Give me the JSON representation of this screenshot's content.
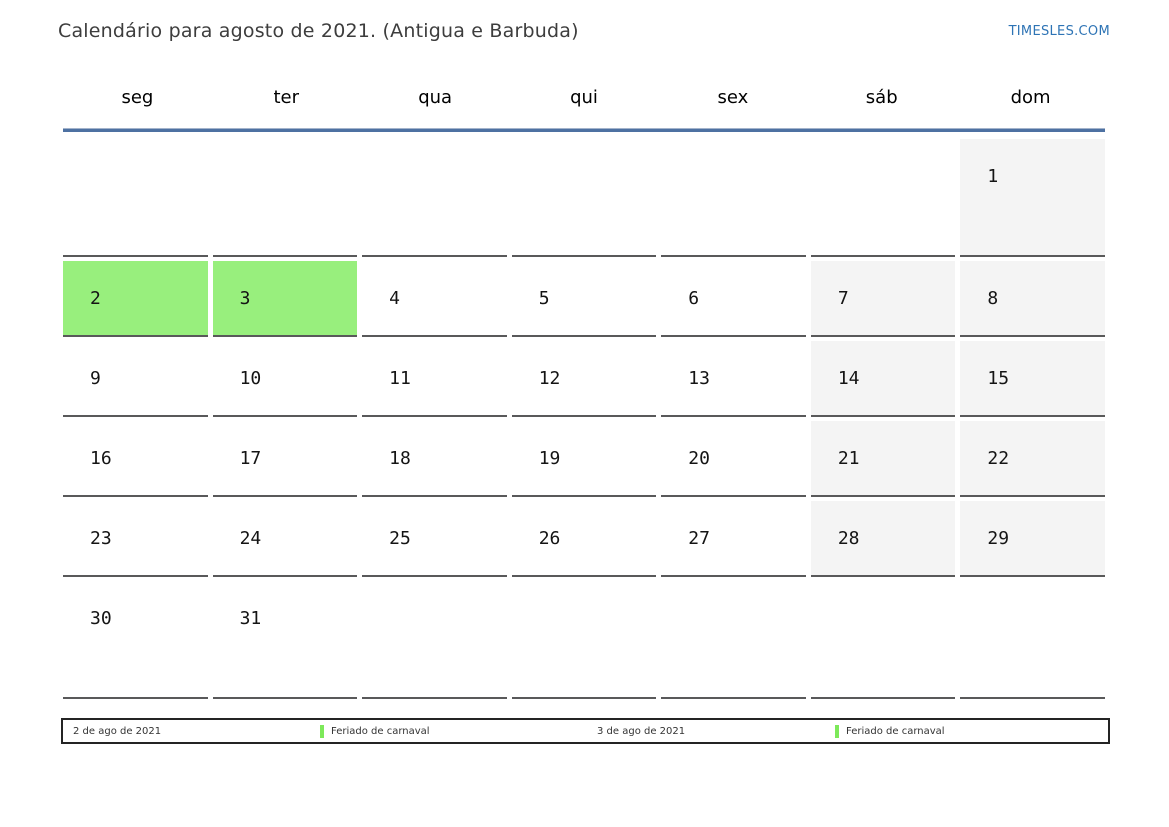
{
  "header": {
    "title": "Calendário para agosto de 2021. (Antigua e Barbuda)",
    "brand": "TIMESLES.COM"
  },
  "calendar": {
    "weekdays": [
      "seg",
      "ter",
      "qua",
      "qui",
      "sex",
      "sáb",
      "dom"
    ],
    "weeks": [
      [
        "",
        "",
        "",
        "",
        "",
        "",
        "1"
      ],
      [
        "2",
        "3",
        "4",
        "5",
        "6",
        "7",
        "8"
      ],
      [
        "9",
        "10",
        "11",
        "12",
        "13",
        "14",
        "15"
      ],
      [
        "16",
        "17",
        "18",
        "19",
        "20",
        "21",
        "22"
      ],
      [
        "23",
        "24",
        "25",
        "26",
        "27",
        "28",
        "29"
      ],
      [
        "30",
        "31",
        "",
        "",
        "",
        "",
        ""
      ]
    ],
    "holiday_days": [
      "2",
      "3"
    ],
    "colors": {
      "holiday_bg": "#98ef7d",
      "weekend_bg": "#f4f4f4",
      "header_rule": "#4d71a2",
      "cell_border": "#59595a",
      "brand_blue": "#2e74b5",
      "legend_marker": "#7de95a"
    }
  },
  "legend": {
    "entries": [
      {
        "date": "2 de ago de 2021",
        "name": "Feriado de carnaval"
      },
      {
        "date": "3 de ago de 2021",
        "name": "Feriado de carnaval"
      }
    ]
  }
}
